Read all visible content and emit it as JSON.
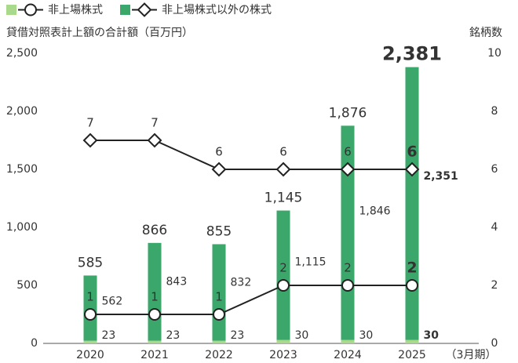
{
  "chart_data": {
    "type": "bar",
    "y_axis_title": "貸借対照表計上額の合計額（百万円）",
    "y2_axis_title": "銘柄数",
    "x_annotation": "（3月期）",
    "categories": [
      "2020",
      "2021",
      "2022",
      "2023",
      "2024",
      "2025"
    ],
    "series": [
      {
        "name": "非上場株式",
        "color": "#a9d98b",
        "values": [
          23,
          23,
          23,
          30,
          30,
          30
        ],
        "count_values": [
          1,
          1,
          1,
          2,
          2,
          2
        ],
        "marker": "circle"
      },
      {
        "name": "非上場株式以外の株式",
        "color": "#3ba76b",
        "values": [
          562,
          843,
          832,
          1115,
          1846,
          2351
        ],
        "value_labels": [
          "562",
          "843",
          "832",
          "1,115",
          "1,846",
          "2,351"
        ],
        "count_values": [
          7,
          7,
          6,
          6,
          6,
          6
        ],
        "marker": "diamond"
      }
    ],
    "totals": {
      "values": [
        585,
        866,
        855,
        1145,
        1876,
        2381
      ],
      "value_labels": [
        "585",
        "866",
        "855",
        "1,145",
        "1,876",
        "2,381"
      ]
    },
    "ylim": [
      0,
      2500
    ],
    "yticks": [
      0,
      500,
      {
        "value": 1000,
        "label": "1,000"
      },
      {
        "value": 1500,
        "label": "1,500"
      },
      {
        "value": 2000,
        "label": "2,000"
      },
      {
        "value": 2500,
        "label": "2,500"
      }
    ],
    "y2lim": [
      0,
      10
    ],
    "y2ticks": [
      0,
      2,
      4,
      6,
      8,
      10
    ],
    "line_color": "#222222"
  }
}
